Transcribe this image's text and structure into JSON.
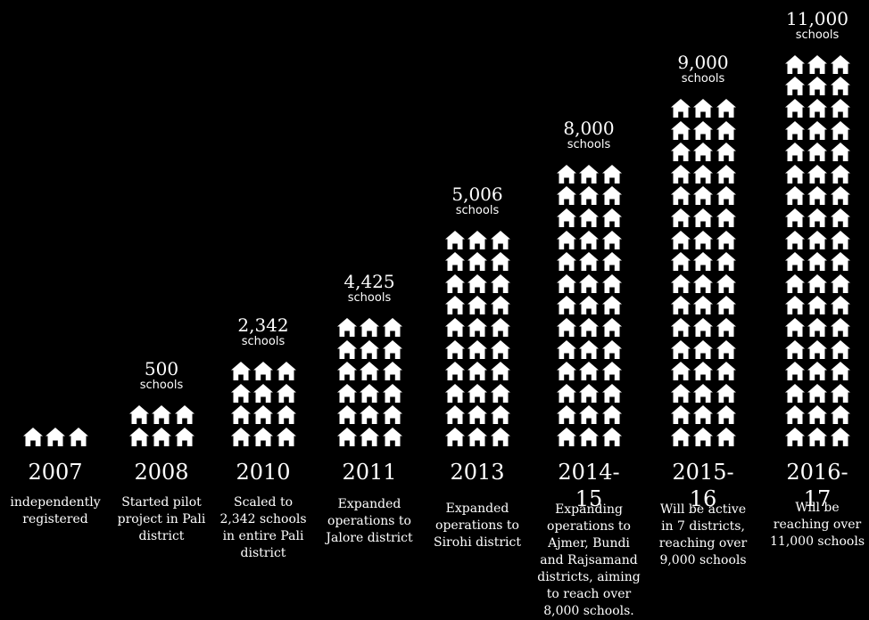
{
  "chart_data": {
    "type": "pictograph",
    "unit_label": "schools",
    "icon": "school-house-icon",
    "colors": {
      "background": "#000000",
      "foreground": "#ffffff"
    },
    "categories": [
      "2007",
      "2008",
      "2010",
      "2011",
      "2013",
      "2014-15",
      "2015-16",
      "2016-17"
    ],
    "values": [
      null,
      500,
      2342,
      4425,
      5006,
      8000,
      9000,
      11000
    ],
    "value_labels": [
      "",
      "500",
      "2,342",
      "4,425",
      "5,006",
      "8,000",
      "9,000",
      "11,000"
    ],
    "icon_rows": [
      1,
      2,
      4,
      6,
      10,
      13,
      16,
      18
    ],
    "descriptions": [
      [
        "independently",
        "registered"
      ],
      [
        "Started pilot",
        "project in Pali",
        "district"
      ],
      [
        "Scaled to",
        "2,342 schools",
        "in entire Pali",
        "district"
      ],
      [
        "Expanded",
        "operations to",
        "Jalore district"
      ],
      [
        "Expanded",
        "operations to",
        "Sirohi district"
      ],
      [
        "Expanding",
        "operations to",
        "Ajmer, Bundi",
        "and Rajsamand",
        "districts, aiming",
        "to reach over",
        "8,000 schools."
      ],
      [
        "Will be active",
        "in 7 districts,",
        "reaching over",
        "9,000 schools"
      ],
      [
        "Will be",
        "reaching over",
        "11,000 schools"
      ]
    ]
  }
}
